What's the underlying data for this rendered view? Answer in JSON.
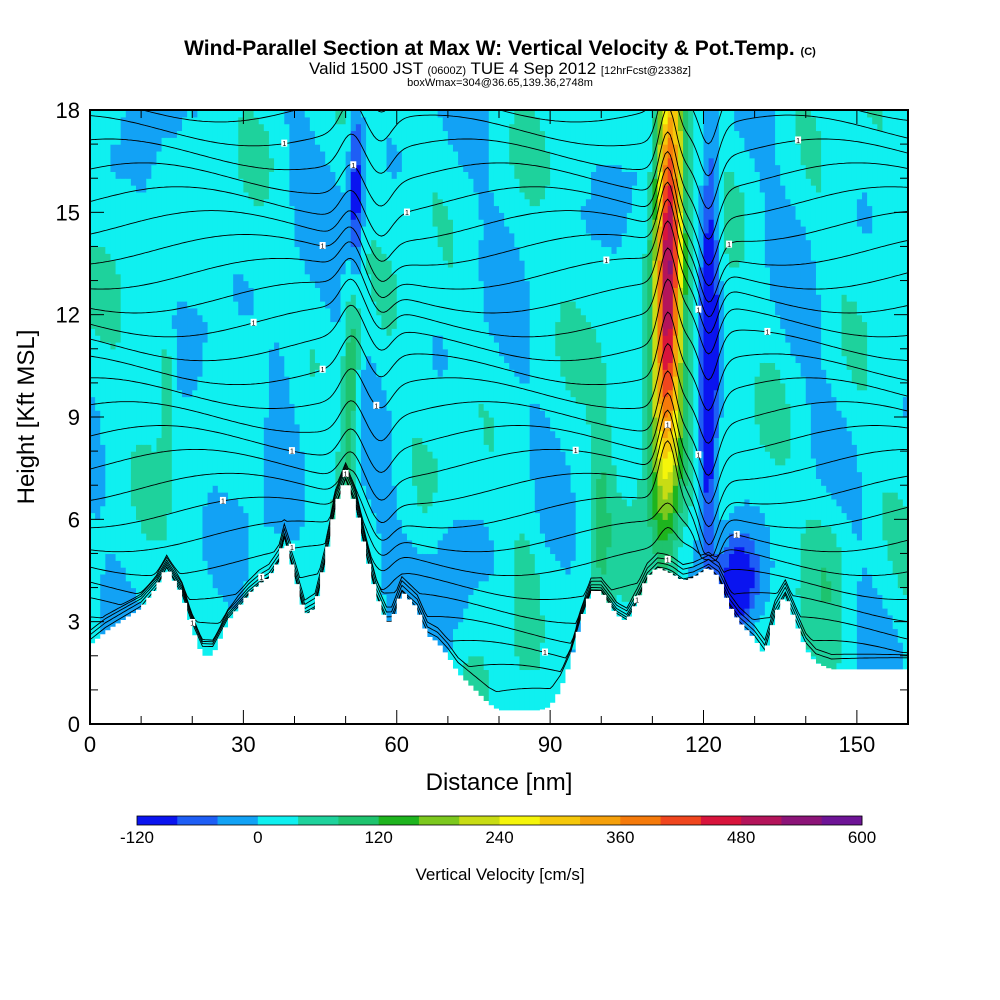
{
  "title": {
    "main": "Wind-Parallel Section at Max W: Vertical Velocity & Pot.Temp.",
    "copyright": "(C)",
    "valid_prefix": "Valid 1500 JST",
    "valid_utc": "(0600Z)",
    "valid_date": "TUE 4 Sep 2012",
    "forecast": "[12hrFcst@2338z]",
    "box": "boxWmax=304@36.65,139.36,2748m"
  },
  "colorbar": {
    "label": "Vertical Velocity [cm/s]",
    "tick_labels": [
      "-120",
      "0",
      "120",
      "240",
      "360",
      "480",
      "600"
    ],
    "tick_values": [
      -120,
      0,
      120,
      240,
      360,
      480,
      600
    ],
    "min": -120,
    "max": 600,
    "step": 40,
    "colors": [
      "#0a14f0",
      "#1e5ef5",
      "#12a2f5",
      "#0ff0f0",
      "#1ed29c",
      "#1ec36e",
      "#1eb41e",
      "#7cc81e",
      "#c8dc14",
      "#f5f50a",
      "#f5c80a",
      "#f5a00a",
      "#f57a0a",
      "#f0461e",
      "#d8143c",
      "#b4145a",
      "#8c1478",
      "#6e1496"
    ]
  },
  "chart_data": {
    "type": "heatmap",
    "xlabel": "Distance [nm]",
    "ylabel": "Height [Kft MSL]",
    "xlim": [
      0,
      160
    ],
    "ylim": [
      0,
      18
    ],
    "x_ticks": [
      0,
      30,
      60,
      90,
      120,
      150
    ],
    "y_ticks": [
      0,
      3,
      6,
      9,
      12,
      15,
      18
    ],
    "terrain": {
      "x": [
        0,
        3,
        6,
        10,
        13,
        15,
        18,
        20,
        22,
        24,
        27,
        29,
        31,
        33,
        35,
        37,
        38,
        40,
        42,
        44,
        46,
        48,
        50,
        52,
        54,
        56,
        58,
        59,
        61,
        64,
        66,
        68,
        70,
        72,
        74,
        76,
        78,
        80,
        83,
        86,
        88,
        90,
        92,
        94,
        96,
        98,
        100,
        103,
        105,
        107,
        109,
        111,
        114,
        116,
        118,
        121,
        123,
        125,
        127,
        130,
        132,
        134,
        136,
        138,
        140,
        142,
        145,
        150,
        155,
        160
      ],
      "height_kft": [
        2.3,
        2.7,
        3.0,
        3.4,
        4.0,
        4.6,
        3.8,
        2.8,
        2.0,
        2.0,
        3.0,
        3.4,
        3.8,
        4.1,
        4.3,
        4.8,
        5.5,
        4.4,
        3.2,
        3.4,
        4.8,
        6.4,
        7.2,
        6.4,
        5.0,
        3.8,
        3.0,
        3.0,
        3.9,
        3.4,
        2.6,
        2.4,
        2.0,
        1.5,
        1.2,
        0.9,
        0.6,
        0.4,
        0.4,
        0.4,
        0.4,
        0.5,
        1.0,
        1.8,
        3.0,
        3.9,
        3.9,
        3.2,
        3.0,
        3.6,
        4.3,
        4.6,
        4.4,
        4.2,
        4.3,
        4.6,
        4.3,
        3.5,
        3.0,
        2.5,
        2.0,
        3.2,
        3.8,
        3.0,
        2.2,
        1.8,
        1.6,
        1.6,
        1.6,
        1.6
      ]
    },
    "w_features": [
      {
        "name": "max updraft",
        "x": 113,
        "height_range_kft": [
          7,
          18
        ],
        "max_w_cms": 480
      },
      {
        "name": "downdraft",
        "x": 121,
        "height_range_kft": [
          4,
          17
        ],
        "min_w_cms": -120
      },
      {
        "name": "lee updraft",
        "x": 51,
        "height_range_kft": [
          7,
          13
        ],
        "max_w_cms": 140
      },
      {
        "name": "weak updraft",
        "x": 15,
        "height_range_kft": [
          9,
          11
        ],
        "max_w_cms": 80
      }
    ],
    "theta_contour_labels": [
      "1",
      "1",
      "1",
      "1",
      "1",
      "1",
      "1",
      "1",
      "1",
      "1",
      "1",
      "1",
      "1",
      "1",
      "1",
      "1",
      "1",
      "1",
      "1",
      "1",
      "1",
      "1",
      "1",
      "1",
      "1",
      "1"
    ]
  }
}
